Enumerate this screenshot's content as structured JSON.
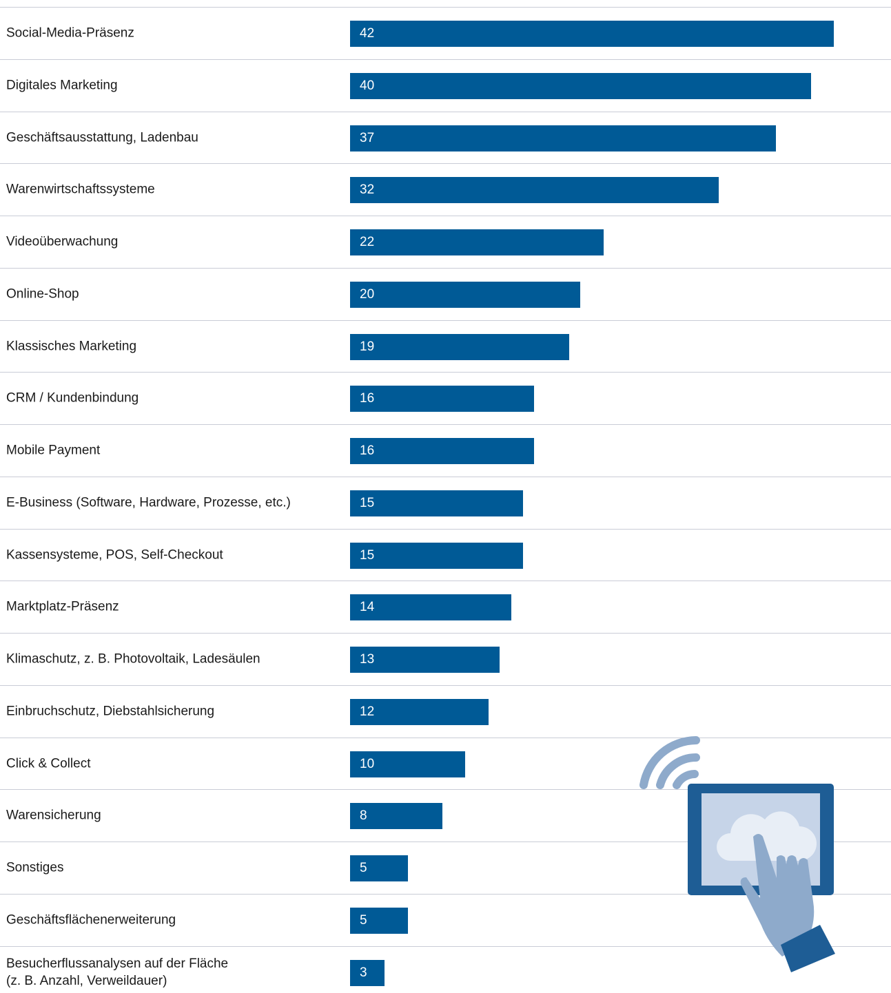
{
  "chart_data": {
    "type": "bar",
    "orientation": "horizontal",
    "color": "#005a96",
    "categories": [
      "Social-Media-Präsenz",
      "Digitales Marketing",
      "Geschäftsausstattung, Ladenbau",
      "Warenwirtschaftssysteme",
      "Videoüberwachung",
      "Online-Shop",
      "Klassisches Marketing",
      "CRM / Kundenbindung",
      "Mobile Payment",
      "E-Business (Software, Hardware, Prozesse, etc.)",
      "Kassensysteme, POS, Self-Checkout",
      "Marktplatz-Präsenz",
      "Klimaschutz, z. B. Photovoltaik, Ladesäulen",
      "Einbruchschutz, Diebstahlsicherung",
      "Click & Collect",
      "Warensicherung",
      "Sonstiges",
      "Geschäftsflächenerweiterung",
      "Besucherflussanalysen auf der Fläche\n(z. B. Anzahl, Verweildauer)"
    ],
    "values": [
      42,
      40,
      37,
      32,
      22,
      20,
      19,
      16,
      16,
      15,
      15,
      14,
      13,
      12,
      10,
      8,
      5,
      5,
      3
    ]
  }
}
